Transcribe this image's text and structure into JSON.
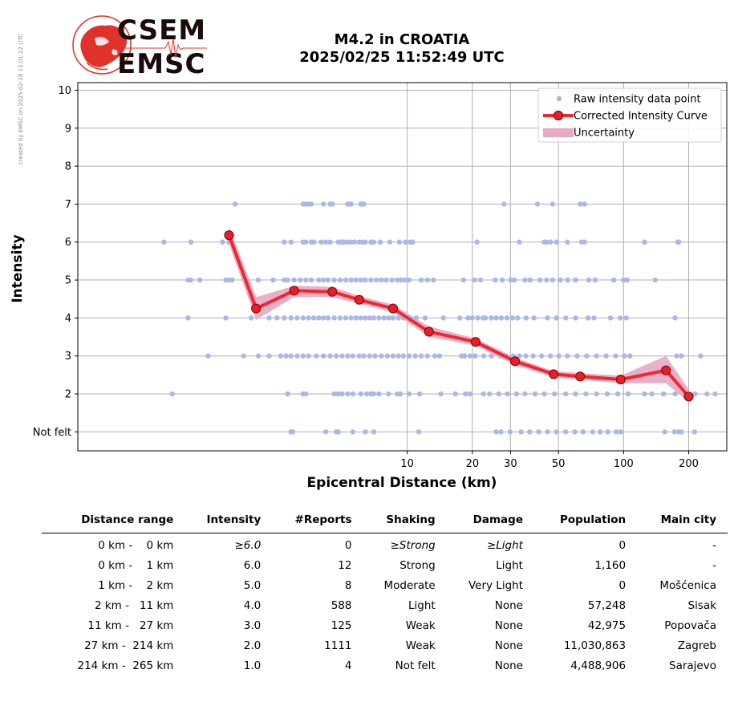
{
  "watermark": "created by EMSC on 2025-02-28 13:01:22 UTC",
  "logo": {
    "line1": "CSEM",
    "line2": "EMSC"
  },
  "chart_data": {
    "type": "scatter",
    "title": "M4.2 in CROATIA",
    "subtitle": "2025/02/25 11:52:49 UTC",
    "xlabel": "Epicentral Distance (km)",
    "ylabel": "Intensity",
    "x_scale": "log",
    "xlim": [
      0.3,
      300
    ],
    "ylim": [
      0.5,
      10.2
    ],
    "x_ticks": [
      10,
      20,
      30,
      50,
      100,
      200
    ],
    "y_ticks": [
      {
        "value": 1,
        "label": "Not felt"
      },
      {
        "value": 2,
        "label": "2"
      },
      {
        "value": 3,
        "label": "3"
      },
      {
        "value": 4,
        "label": "4"
      },
      {
        "value": 5,
        "label": "5"
      },
      {
        "value": 6,
        "label": "6"
      },
      {
        "value": 7,
        "label": "7"
      },
      {
        "value": 8,
        "label": "8"
      },
      {
        "value": 9,
        "label": "9"
      },
      {
        "value": 10,
        "label": "10"
      }
    ],
    "grid": true,
    "legend_position": "top-right",
    "legend": [
      {
        "label": "Raw intensity data point",
        "kind": "dot",
        "color": "#aab8e8"
      },
      {
        "label": "Corrected Intensity Curve",
        "kind": "line-marker",
        "color": "#f0282e"
      },
      {
        "label": "Uncertainty",
        "kind": "band",
        "color": "#e6a8c4"
      }
    ],
    "colors": {
      "raw": "#aab8e8",
      "curve": "#f0282e",
      "marker_fill": "#ee1c24",
      "marker_edge": "#7a1010",
      "band": "#e6a8c4"
    },
    "raw_points": [
      {
        "intensity": 7,
        "distances": [
          1.6,
          3.3,
          3.4,
          3.5,
          3.6,
          4.1,
          4.4,
          4.5,
          5.3,
          5.4,
          5.5,
          6.1,
          6.2,
          6.3,
          28,
          40,
          47,
          63,
          66
        ]
      },
      {
        "intensity": 6,
        "distances": [
          0.75,
          1.0,
          1.4,
          1.5,
          1.55,
          2.7,
          2.9,
          3.3,
          3.4,
          3.6,
          3.7,
          4.0,
          4.2,
          4.4,
          4.8,
          4.9,
          5.0,
          5.1,
          5.3,
          5.5,
          5.7,
          6.0,
          6.2,
          6.4,
          6.8,
          7.0,
          7.5,
          8.3,
          9.2,
          9.8,
          10.3,
          10.6,
          21,
          33,
          43,
          44,
          46,
          49,
          55,
          64,
          66,
          125,
          178,
          180
        ]
      },
      {
        "intensity": 5,
        "distances": [
          0.97,
          1.0,
          1.1,
          1.45,
          1.5,
          1.55,
          2.05,
          2.4,
          2.7,
          2.8,
          3.0,
          3.2,
          3.4,
          3.6,
          3.9,
          4.1,
          4.3,
          4.6,
          4.9,
          5.2,
          5.5,
          5.8,
          6.1,
          6.4,
          6.8,
          7.2,
          7.6,
          8.0,
          8.5,
          9.0,
          9.4,
          9.8,
          10.2,
          11.6,
          12.4,
          13.2,
          18.2,
          20.5,
          21.8,
          25.5,
          27.5,
          30.0,
          31.2,
          35,
          37,
          41,
          44,
          47,
          51,
          55,
          60,
          69,
          74,
          90,
          100,
          104,
          140
        ]
      },
      {
        "intensity": 4,
        "distances": [
          0.28,
          0.97,
          1.45,
          1.9,
          2.3,
          2.5,
          2.7,
          2.9,
          3.1,
          3.3,
          3.5,
          3.7,
          3.9,
          4.1,
          4.3,
          4.6,
          4.9,
          5.2,
          5.5,
          5.8,
          6.1,
          6.4,
          6.7,
          7.0,
          7.4,
          7.8,
          8.2,
          8.6,
          9.1,
          9.6,
          10.2,
          11.0,
          12.1,
          14.7,
          17.5,
          19.1,
          20.0,
          21.2,
          22.4,
          23.0,
          24.5,
          25.8,
          27.2,
          28.9,
          30.7,
          32.4,
          35.4,
          38.5,
          44.5,
          48.9,
          54.0,
          60.0,
          68.5,
          73.0,
          87.0,
          96.5,
          103.0,
          173.0
        ]
      },
      {
        "intensity": 3,
        "distances": [
          1.2,
          1.75,
          2.05,
          2.3,
          2.6,
          2.75,
          2.9,
          3.1,
          3.3,
          3.5,
          3.8,
          4.1,
          4.4,
          4.7,
          5.0,
          5.3,
          5.6,
          6.0,
          6.3,
          6.7,
          7.1,
          7.6,
          8.1,
          8.6,
          9.1,
          9.6,
          10.2,
          10.9,
          11.6,
          12.4,
          13.4,
          14.1,
          17.8,
          18.4,
          19.5,
          20.6,
          22.6,
          24.5,
          27.0,
          28.5,
          30.9,
          33.0,
          35.3,
          38.2,
          41.8,
          45.9,
          50.2,
          55.0,
          61.0,
          67.5,
          75.0,
          83.0,
          92.0,
          101.0,
          107.0,
          176.0,
          185.0,
          227.0
        ]
      },
      {
        "intensity": 2,
        "distances": [
          0.82,
          2.8,
          3.3,
          3.4,
          4.6,
          4.8,
          5.0,
          5.3,
          5.6,
          6.1,
          6.5,
          6.8,
          7.0,
          7.4,
          8.2,
          9.0,
          9.3,
          10.2,
          11.4,
          14.3,
          16.7,
          18.6,
          19.5,
          22.5,
          24.0,
          26.5,
          29.0,
          32.0,
          35.0,
          39.0,
          43.0,
          48.0,
          54.0,
          60.0,
          67.0,
          75.0,
          84.0,
          94.0,
          105.0,
          125.0,
          135.0,
          153.0,
          173.0,
          192.0,
          214.0,
          243.0,
          265.0
        ]
      },
      {
        "intensity": 1,
        "distances": [
          2.9,
          2.95,
          4.2,
          4.7,
          4.8,
          5.6,
          6.4,
          7.0,
          11.3,
          25.8,
          27.1,
          29.9,
          33.6,
          36.8,
          40.5,
          44.5,
          49.0,
          54.0,
          59.5,
          65.0,
          72.0,
          78.0,
          84.5,
          92.5,
          97.0,
          155.0,
          172.0,
          180.0,
          185.0,
          213.0
        ]
      }
    ],
    "curve": {
      "x": [
        1.5,
        2.0,
        3.0,
        4.5,
        6.0,
        8.6,
        12.6,
        20.7,
        31.5,
        47.5,
        63.0,
        97.0,
        157.0,
        200.0
      ],
      "y": [
        6.18,
        4.25,
        4.72,
        4.69,
        4.48,
        4.25,
        3.64,
        3.37,
        2.86,
        2.52,
        2.46,
        2.38,
        2.62,
        1.93
      ],
      "upper": [
        6.42,
        4.55,
        4.85,
        4.82,
        4.58,
        4.35,
        3.78,
        3.46,
        2.96,
        2.6,
        2.55,
        2.48,
        3.0,
        2.12
      ],
      "lower": [
        5.95,
        3.95,
        4.55,
        4.55,
        4.38,
        4.15,
        3.5,
        3.28,
        2.76,
        2.44,
        2.38,
        2.28,
        2.28,
        1.78
      ]
    }
  },
  "table": {
    "headers": [
      "Distance range",
      "Intensity",
      "#Reports",
      "Shaking",
      "Damage",
      "Population",
      "Main city"
    ],
    "rows": [
      {
        "range": "0 km -    0 km",
        "intensity": "≥6.0",
        "reports": "0",
        "shaking": "≥Strong",
        "damage": "≥Light",
        "population": "0",
        "city": "-",
        "italic": true
      },
      {
        "range": "0 km -    1 km",
        "intensity": "6.0",
        "reports": "12",
        "shaking": "Strong",
        "damage": "Light",
        "population": "1,160",
        "city": "-",
        "italic": false
      },
      {
        "range": "1 km -    2 km",
        "intensity": "5.0",
        "reports": "8",
        "shaking": "Moderate",
        "damage": "Very Light",
        "population": "0",
        "city": "Mošćenica",
        "italic": false
      },
      {
        "range": "2 km -   11 km",
        "intensity": "4.0",
        "reports": "588",
        "shaking": "Light",
        "damage": "None",
        "population": "57,248",
        "city": "Sisak",
        "italic": false
      },
      {
        "range": "11 km -   27 km",
        "intensity": "3.0",
        "reports": "125",
        "shaking": "Weak",
        "damage": "None",
        "population": "42,975",
        "city": "Popovača",
        "italic": false
      },
      {
        "range": "27 km -  214 km",
        "intensity": "2.0",
        "reports": "1111",
        "shaking": "Weak",
        "damage": "None",
        "population": "11,030,863",
        "city": "Zagreb",
        "italic": false
      },
      {
        "range": "214 km -  265 km",
        "intensity": "1.0",
        "reports": "4",
        "shaking": "Not felt",
        "damage": "None",
        "population": "4,488,906",
        "city": "Sarajevo",
        "italic": false
      }
    ]
  }
}
